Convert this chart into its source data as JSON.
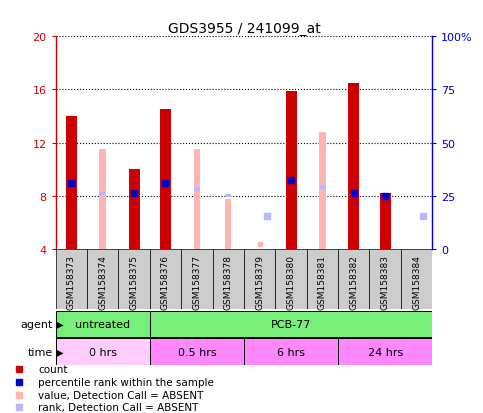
{
  "title": "GDS3955 / 241099_at",
  "samples": [
    "GSM158373",
    "GSM158374",
    "GSM158375",
    "GSM158376",
    "GSM158377",
    "GSM158378",
    "GSM158379",
    "GSM158380",
    "GSM158381",
    "GSM158382",
    "GSM158383",
    "GSM158384"
  ],
  "count_values": [
    14.0,
    null,
    10.0,
    14.5,
    null,
    null,
    null,
    15.9,
    null,
    16.5,
    8.2,
    null
  ],
  "rank_values": [
    9.0,
    null,
    8.2,
    9.0,
    null,
    null,
    null,
    9.2,
    null,
    8.2,
    8.0,
    null
  ],
  "absent_value_bars": [
    null,
    11.5,
    null,
    null,
    11.5,
    7.8,
    null,
    null,
    12.8,
    null,
    null,
    null
  ],
  "absent_rank_bars": [
    null,
    8.2,
    null,
    null,
    8.5,
    8.0,
    null,
    null,
    8.6,
    null,
    null,
    null
  ],
  "absent_small_squares": [
    null,
    null,
    null,
    null,
    null,
    null,
    6.5,
    null,
    null,
    null,
    null,
    6.5
  ],
  "absent_value_small": [
    null,
    null,
    null,
    null,
    null,
    null,
    4.4,
    null,
    null,
    null,
    null,
    null
  ],
  "ylim_left": [
    4,
    20
  ],
  "ylim_right": [
    0,
    100
  ],
  "yticks_left": [
    4,
    8,
    12,
    16,
    20
  ],
  "yticks_right": [
    0,
    25,
    50,
    75,
    100
  ],
  "ytick_labels_right": [
    "0",
    "25",
    "50",
    "75",
    "100%"
  ],
  "color_count": "#cc0000",
  "color_rank": "#0000cc",
  "color_absent_value": "#ffb3b3",
  "color_absent_rank": "#b8b8ff",
  "color_agent_untreated": "#77ee77",
  "color_agent_pcb": "#77ee77",
  "color_time_0": "#ffccff",
  "color_time_other": "#ff88ff",
  "color_bg_samples": "#cccccc",
  "color_plot_bg": "#ffffff",
  "bar_width": 0.35,
  "absent_bar_width": 0.2
}
